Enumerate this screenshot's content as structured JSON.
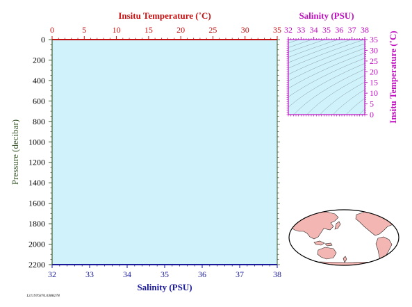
{
  "colors": {
    "temperature": "#c41010",
    "salinity": "#1a1a9a",
    "pressure": "#3c5a2e",
    "ts_axis": "#c010c0",
    "plot_background": "#cff2fb",
    "land": "#f4b6b2",
    "ocean": "#ffffff",
    "isopycnal": "#8a9aa6"
  },
  "chart_data": [
    {
      "type": "scatter",
      "name": "profile",
      "title": "",
      "xlabel_top": "Insitu Temperature (˚C)",
      "xlabel_bottom": "Salinity (PSU)",
      "ylabel": "Pressure (decibar)",
      "x_top_lim": [
        0,
        35
      ],
      "x_top_ticks": [
        "0",
        "5",
        "10",
        "15",
        "20",
        "25",
        "30",
        "35"
      ],
      "x_bottom_lim": [
        32,
        38
      ],
      "x_bottom_ticks": [
        "32",
        "33",
        "34",
        "35",
        "36",
        "37",
        "38"
      ],
      "ylim": [
        0,
        2200
      ],
      "y_inverted": true,
      "y_ticks": [
        "0",
        "200",
        "400",
        "600",
        "800",
        "1000",
        "1200",
        "1400",
        "1600",
        "1800",
        "2000",
        "2200"
      ],
      "series": [],
      "grid": false
    },
    {
      "type": "scatter",
      "name": "ts_diagram",
      "title": "",
      "xlabel": "Salinity (PSU)",
      "ylabel": "Insitu Temperature (˚C)",
      "xlim": [
        32,
        38
      ],
      "x_ticks": [
        "32",
        "33",
        "34",
        "35",
        "36",
        "37",
        "38"
      ],
      "ylim": [
        0,
        35
      ],
      "y_ticks": [
        "0",
        "5",
        "10",
        "15",
        "20",
        "25",
        "30",
        "35"
      ],
      "series": [],
      "grid": false,
      "isopycnals": true
    }
  ],
  "map": {
    "projection": "world",
    "centered_on": "pacific"
  },
  "footer": {
    "id_text": "1211976376.0388278"
  }
}
